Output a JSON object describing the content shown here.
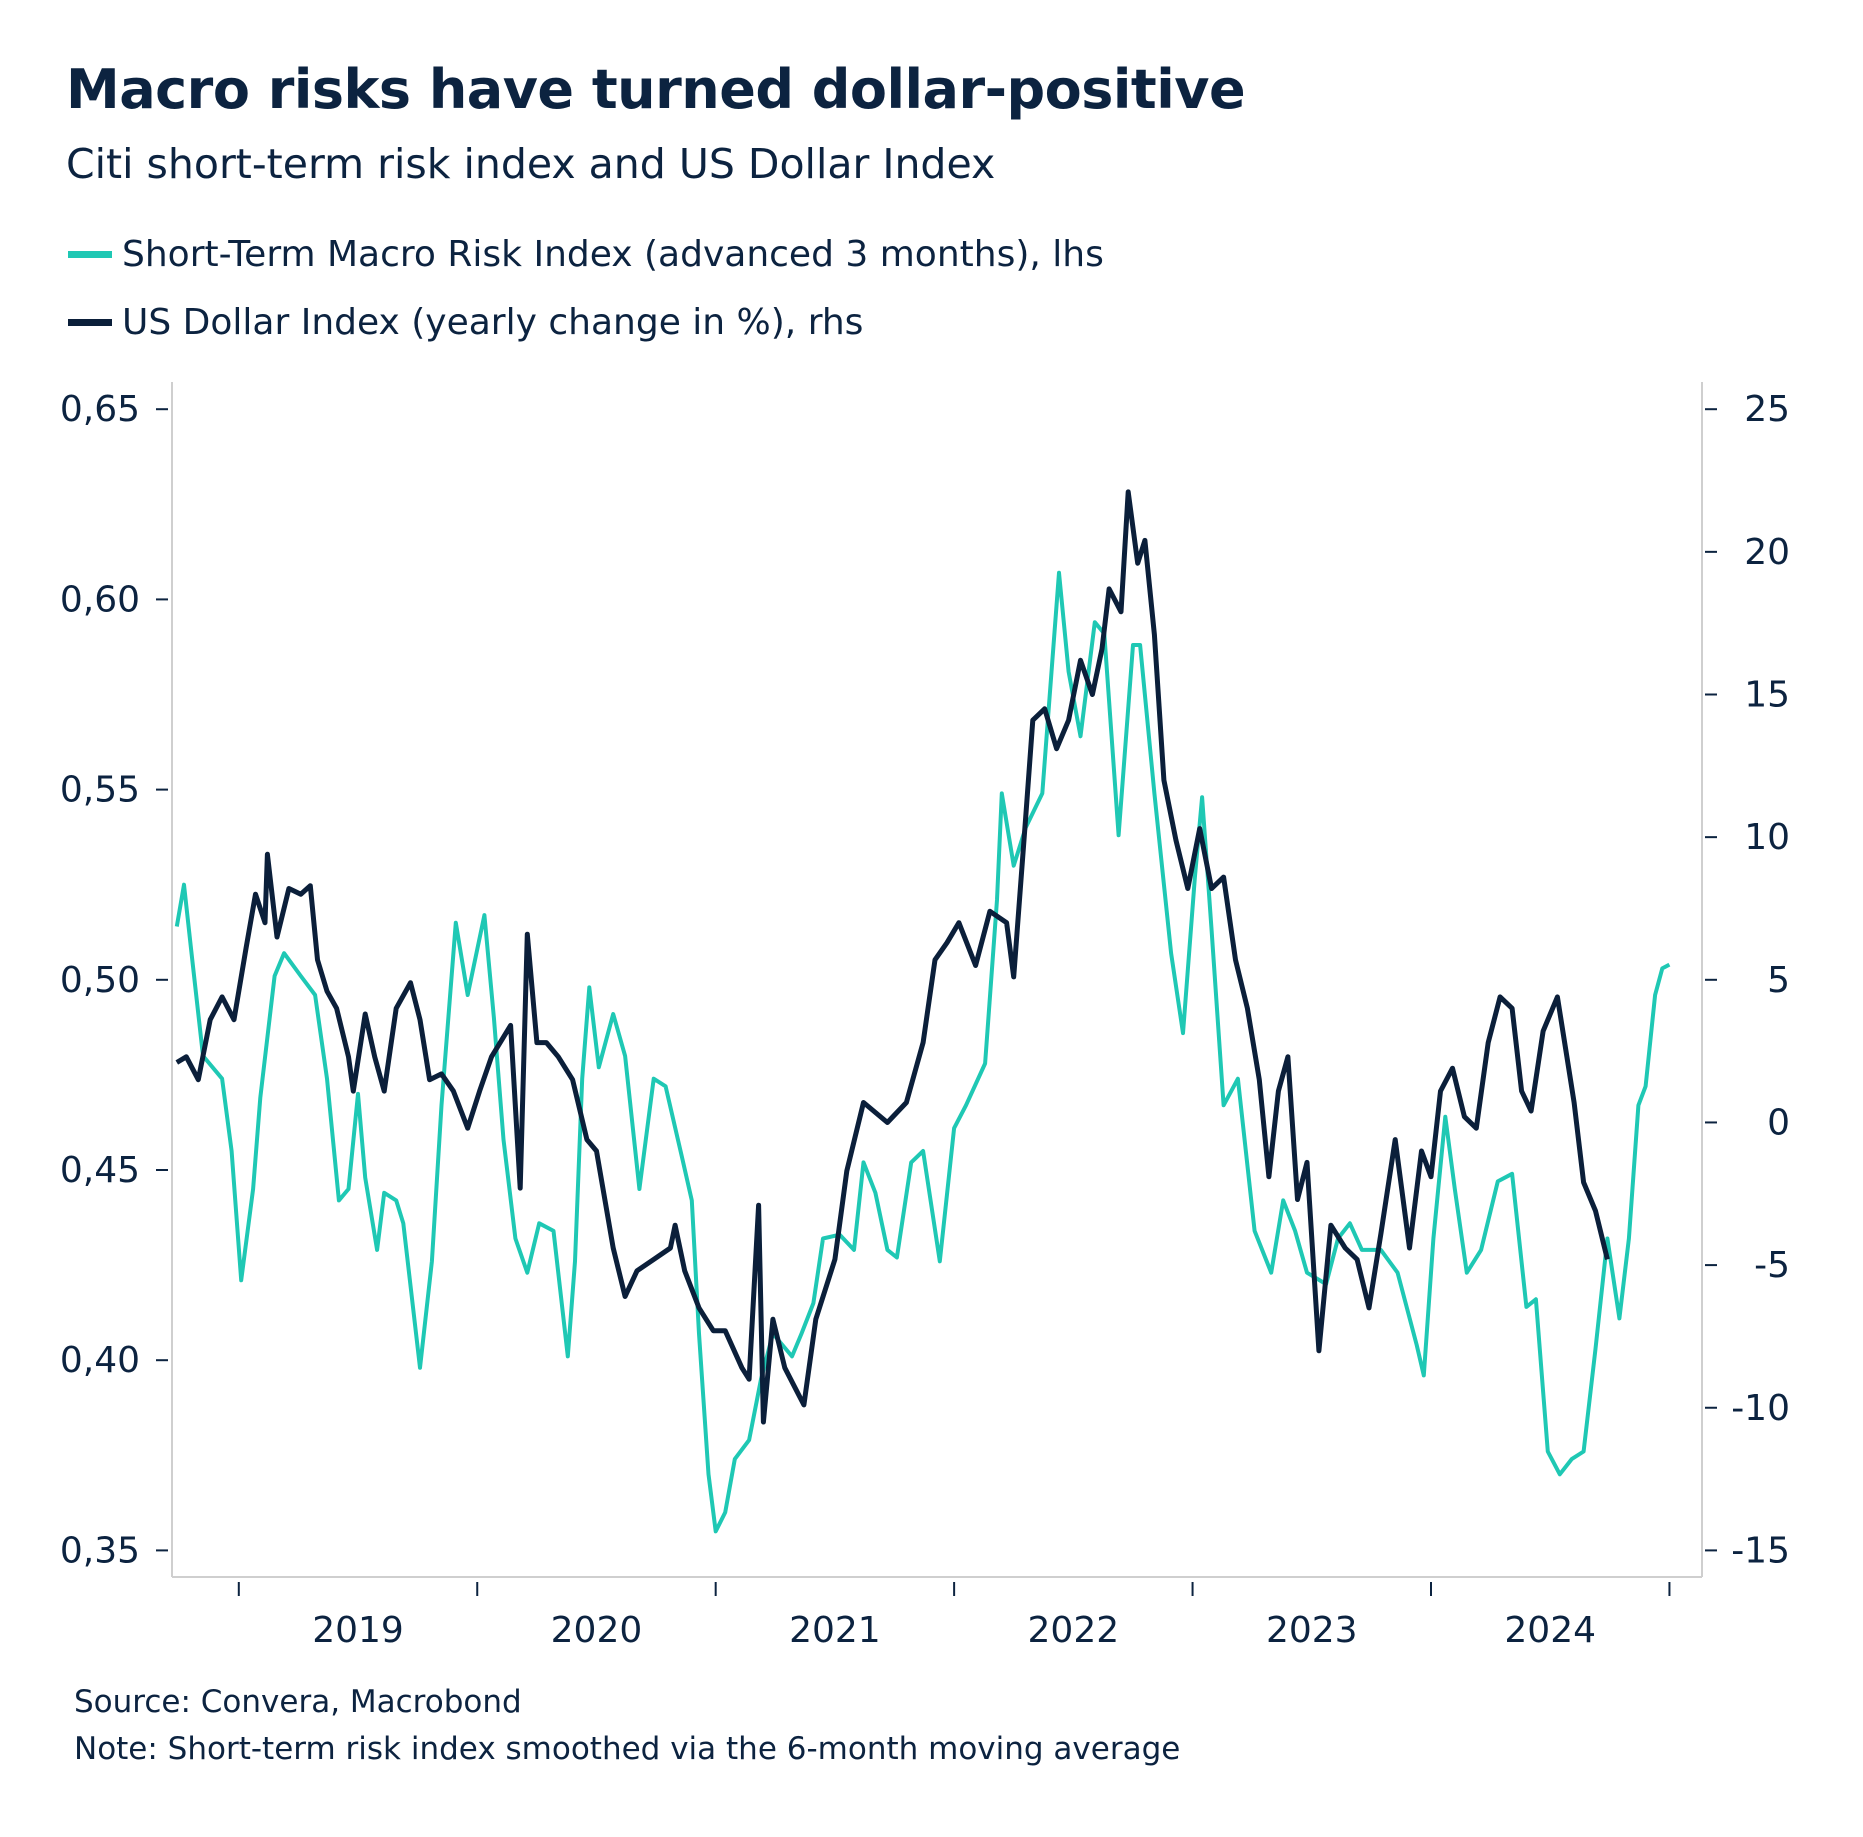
{
  "title": "Macro risks have turned dollar-positive",
  "subtitle": "Citi short-term risk index and US Dollar Index",
  "footer": {
    "source": "Source: Convera, Macrobond",
    "note": "Note: Short-term risk index smoothed via the 6-month moving average"
  },
  "colors": {
    "risk": "#1fc8b4",
    "dollar": "#0b1f3a",
    "text": "#0c2340",
    "frame": "#cfcfcf"
  },
  "chart_data": {
    "type": "line",
    "title": "Macro risks have turned dollar-positive",
    "subtitle": "Citi short-term risk index and US Dollar Index",
    "legend_position": "top-left",
    "grid": false,
    "xlim": [
      2018.72,
      2025.13
    ],
    "x_ticks": [
      "2019",
      "2020",
      "2021",
      "2022",
      "2023",
      "2024"
    ],
    "y_left": {
      "ylim": [
        0.35,
        0.65
      ],
      "ticks": [
        "0,35",
        "0,40",
        "0,45",
        "0,50",
        "0,55",
        "0,60",
        "0,65"
      ],
      "tick_values": [
        0.35,
        0.4,
        0.45,
        0.5,
        0.55,
        0.6,
        0.65
      ]
    },
    "y_right": {
      "ylim": [
        -15,
        25
      ],
      "ticks": [
        "-15",
        "-10",
        "-5",
        "0",
        "5",
        "10",
        "15",
        "20",
        "25"
      ],
      "tick_values": [
        -15,
        -10,
        -5,
        0,
        5,
        10,
        15,
        20,
        25
      ]
    },
    "series": [
      {
        "name": "Short-Term Macro Risk Index (advanced 3 months), lhs",
        "axis": "left",
        "color": "#1fc8b4",
        "points": [
          [
            2018.74,
            0.514
          ],
          [
            2018.77,
            0.525
          ],
          [
            2018.8,
            0.508
          ],
          [
            2018.85,
            0.48
          ],
          [
            2018.93,
            0.474
          ],
          [
            2018.97,
            0.455
          ],
          [
            2019.01,
            0.421
          ],
          [
            2019.06,
            0.445
          ],
          [
            2019.09,
            0.469
          ],
          [
            2019.15,
            0.501
          ],
          [
            2019.19,
            0.507
          ],
          [
            2019.26,
            0.501
          ],
          [
            2019.32,
            0.496
          ],
          [
            2019.37,
            0.474
          ],
          [
            2019.42,
            0.442
          ],
          [
            2019.46,
            0.445
          ],
          [
            2019.5,
            0.47
          ],
          [
            2019.53,
            0.448
          ],
          [
            2019.58,
            0.429
          ],
          [
            2019.61,
            0.444
          ],
          [
            2019.66,
            0.442
          ],
          [
            2019.69,
            0.436
          ],
          [
            2019.76,
            0.398
          ],
          [
            2019.81,
            0.426
          ],
          [
            2019.85,
            0.467
          ],
          [
            2019.91,
            0.515
          ],
          [
            2019.96,
            0.496
          ],
          [
            2020.03,
            0.517
          ],
          [
            2020.07,
            0.49
          ],
          [
            2020.11,
            0.458
          ],
          [
            2020.16,
            0.432
          ],
          [
            2020.21,
            0.423
          ],
          [
            2020.26,
            0.436
          ],
          [
            2020.32,
            0.434
          ],
          [
            2020.38,
            0.401
          ],
          [
            2020.41,
            0.426
          ],
          [
            2020.44,
            0.474
          ],
          [
            2020.47,
            0.498
          ],
          [
            2020.51,
            0.477
          ],
          [
            2020.57,
            0.491
          ],
          [
            2020.62,
            0.48
          ],
          [
            2020.68,
            0.445
          ],
          [
            2020.74,
            0.474
          ],
          [
            2020.79,
            0.472
          ],
          [
            2020.86,
            0.453
          ],
          [
            2020.9,
            0.442
          ],
          [
            2020.93,
            0.407
          ],
          [
            2020.97,
            0.37
          ],
          [
            2021.0,
            0.355
          ],
          [
            2021.04,
            0.36
          ],
          [
            2021.08,
            0.374
          ],
          [
            2021.14,
            0.379
          ],
          [
            2021.19,
            0.395
          ],
          [
            2021.24,
            0.407
          ],
          [
            2021.32,
            0.401
          ],
          [
            2021.36,
            0.407
          ],
          [
            2021.41,
            0.415
          ],
          [
            2021.45,
            0.432
          ],
          [
            2021.52,
            0.433
          ],
          [
            2021.58,
            0.429
          ],
          [
            2021.62,
            0.452
          ],
          [
            2021.67,
            0.444
          ],
          [
            2021.72,
            0.429
          ],
          [
            2021.76,
            0.427
          ],
          [
            2021.82,
            0.452
          ],
          [
            2021.87,
            0.455
          ],
          [
            2021.94,
            0.426
          ],
          [
            2022.0,
            0.461
          ],
          [
            2022.05,
            0.467
          ],
          [
            2022.13,
            0.478
          ],
          [
            2022.18,
            0.521
          ],
          [
            2022.2,
            0.549
          ],
          [
            2022.25,
            0.53
          ],
          [
            2022.3,
            0.54
          ],
          [
            2022.37,
            0.549
          ],
          [
            2022.44,
            0.607
          ],
          [
            2022.48,
            0.581
          ],
          [
            2022.53,
            0.564
          ],
          [
            2022.59,
            0.594
          ],
          [
            2022.63,
            0.591
          ],
          [
            2022.69,
            0.538
          ],
          [
            2022.75,
            0.588
          ],
          [
            2022.78,
            0.588
          ],
          [
            2022.84,
            0.549
          ],
          [
            2022.91,
            0.507
          ],
          [
            2022.96,
            0.486
          ],
          [
            2023.01,
            0.527
          ],
          [
            2023.04,
            0.548
          ],
          [
            2023.08,
            0.513
          ],
          [
            2023.13,
            0.467
          ],
          [
            2023.19,
            0.474
          ],
          [
            2023.26,
            0.434
          ],
          [
            2023.33,
            0.423
          ],
          [
            2023.38,
            0.442
          ],
          [
            2023.43,
            0.434
          ],
          [
            2023.48,
            0.423
          ],
          [
            2023.56,
            0.42
          ],
          [
            2023.61,
            0.432
          ],
          [
            2023.66,
            0.436
          ],
          [
            2023.71,
            0.429
          ],
          [
            2023.79,
            0.429
          ],
          [
            2023.86,
            0.423
          ],
          [
            2023.94,
            0.404
          ],
          [
            2023.97,
            0.396
          ],
          [
            2024.01,
            0.432
          ],
          [
            2024.06,
            0.464
          ],
          [
            2024.1,
            0.445
          ],
          [
            2024.15,
            0.423
          ],
          [
            2024.21,
            0.429
          ],
          [
            2024.28,
            0.447
          ],
          [
            2024.34,
            0.449
          ],
          [
            2024.4,
            0.414
          ],
          [
            2024.44,
            0.416
          ],
          [
            2024.49,
            0.376
          ],
          [
            2024.54,
            0.37
          ],
          [
            2024.59,
            0.374
          ],
          [
            2024.64,
            0.376
          ],
          [
            2024.69,
            0.403
          ],
          [
            2024.74,
            0.432
          ],
          [
            2024.79,
            0.411
          ],
          [
            2024.83,
            0.432
          ],
          [
            2024.87,
            0.467
          ],
          [
            2024.9,
            0.472
          ],
          [
            2024.94,
            0.496
          ],
          [
            2024.97,
            0.503
          ],
          [
            2025.0,
            0.504
          ]
        ]
      },
      {
        "name": "US Dollar Index (yearly change in %), rhs",
        "axis": "right",
        "color": "#0b1f3a",
        "points": [
          [
            2018.74,
            2.1
          ],
          [
            2018.78,
            2.3
          ],
          [
            2018.83,
            1.5
          ],
          [
            2018.88,
            3.6
          ],
          [
            2018.93,
            4.4
          ],
          [
            2018.98,
            3.6
          ],
          [
            2019.03,
            6.1
          ],
          [
            2019.07,
            8.0
          ],
          [
            2019.11,
            7.0
          ],
          [
            2019.12,
            9.4
          ],
          [
            2019.16,
            6.5
          ],
          [
            2019.21,
            8.2
          ],
          [
            2019.26,
            8.0
          ],
          [
            2019.3,
            8.3
          ],
          [
            2019.33,
            5.7
          ],
          [
            2019.37,
            4.6
          ],
          [
            2019.41,
            4.0
          ],
          [
            2019.46,
            2.3
          ],
          [
            2019.48,
            1.1
          ],
          [
            2019.53,
            3.8
          ],
          [
            2019.57,
            2.3
          ],
          [
            2019.61,
            1.1
          ],
          [
            2019.66,
            4.0
          ],
          [
            2019.72,
            4.9
          ],
          [
            2019.76,
            3.6
          ],
          [
            2019.8,
            1.5
          ],
          [
            2019.85,
            1.7
          ],
          [
            2019.9,
            1.1
          ],
          [
            2019.96,
            -0.2
          ],
          [
            2020.01,
            1.1
          ],
          [
            2020.06,
            2.3
          ],
          [
            2020.14,
            3.4
          ],
          [
            2020.18,
            -2.3
          ],
          [
            2020.21,
            6.6
          ],
          [
            2020.25,
            2.8
          ],
          [
            2020.29,
            2.8
          ],
          [
            2020.34,
            2.3
          ],
          [
            2020.4,
            1.5
          ],
          [
            2020.46,
            -0.6
          ],
          [
            2020.5,
            -1.0
          ],
          [
            2020.57,
            -4.4
          ],
          [
            2020.62,
            -6.1
          ],
          [
            2020.67,
            -5.2
          ],
          [
            2020.74,
            -4.8
          ],
          [
            2020.81,
            -4.4
          ],
          [
            2020.83,
            -3.6
          ],
          [
            2020.87,
            -5.2
          ],
          [
            2020.93,
            -6.5
          ],
          [
            2020.99,
            -7.3
          ],
          [
            2021.04,
            -7.3
          ],
          [
            2021.11,
            -8.6
          ],
          [
            2021.14,
            -9.0
          ],
          [
            2021.18,
            -2.9
          ],
          [
            2021.2,
            -10.5
          ],
          [
            2021.24,
            -6.9
          ],
          [
            2021.29,
            -8.6
          ],
          [
            2021.37,
            -9.9
          ],
          [
            2021.42,
            -6.9
          ],
          [
            2021.5,
            -4.8
          ],
          [
            2021.55,
            -1.7
          ],
          [
            2021.62,
            0.7
          ],
          [
            2021.72,
            0.0
          ],
          [
            2021.8,
            0.7
          ],
          [
            2021.87,
            2.8
          ],
          [
            2021.92,
            5.7
          ],
          [
            2021.97,
            6.3
          ],
          [
            2022.02,
            7.0
          ],
          [
            2022.09,
            5.5
          ],
          [
            2022.15,
            7.4
          ],
          [
            2022.22,
            7.0
          ],
          [
            2022.25,
            5.1
          ],
          [
            2022.3,
            10.7
          ],
          [
            2022.33,
            14.1
          ],
          [
            2022.38,
            14.5
          ],
          [
            2022.43,
            13.1
          ],
          [
            2022.48,
            14.1
          ],
          [
            2022.53,
            16.2
          ],
          [
            2022.58,
            15.0
          ],
          [
            2022.62,
            16.6
          ],
          [
            2022.65,
            18.7
          ],
          [
            2022.7,
            17.9
          ],
          [
            2022.73,
            22.1
          ],
          [
            2022.77,
            19.6
          ],
          [
            2022.8,
            20.4
          ],
          [
            2022.84,
            17.1
          ],
          [
            2022.88,
            12.0
          ],
          [
            2022.93,
            9.9
          ],
          [
            2022.98,
            8.2
          ],
          [
            2023.03,
            10.3
          ],
          [
            2023.08,
            8.2
          ],
          [
            2023.13,
            8.6
          ],
          [
            2023.18,
            5.7
          ],
          [
            2023.23,
            4.0
          ],
          [
            2023.28,
            1.5
          ],
          [
            2023.32,
            -1.9
          ],
          [
            2023.36,
            1.1
          ],
          [
            2023.4,
            2.3
          ],
          [
            2023.44,
            -2.7
          ],
          [
            2023.48,
            -1.4
          ],
          [
            2023.53,
            -8.0
          ],
          [
            2023.58,
            -3.6
          ],
          [
            2023.64,
            -4.4
          ],
          [
            2023.69,
            -4.8
          ],
          [
            2023.74,
            -6.5
          ],
          [
            2023.79,
            -3.9
          ],
          [
            2023.85,
            -0.6
          ],
          [
            2023.91,
            -4.4
          ],
          [
            2023.96,
            -1.0
          ],
          [
            2024.0,
            -1.9
          ],
          [
            2024.04,
            1.1
          ],
          [
            2024.09,
            1.9
          ],
          [
            2024.14,
            0.2
          ],
          [
            2024.19,
            -0.2
          ],
          [
            2024.24,
            2.8
          ],
          [
            2024.29,
            4.4
          ],
          [
            2024.34,
            4.0
          ],
          [
            2024.38,
            1.1
          ],
          [
            2024.42,
            0.4
          ],
          [
            2024.47,
            3.2
          ],
          [
            2024.53,
            4.4
          ],
          [
            2024.57,
            2.3
          ],
          [
            2024.6,
            0.7
          ],
          [
            2024.64,
            -2.1
          ],
          [
            2024.69,
            -3.1
          ],
          [
            2024.74,
            -4.8
          ]
        ]
      }
    ]
  }
}
